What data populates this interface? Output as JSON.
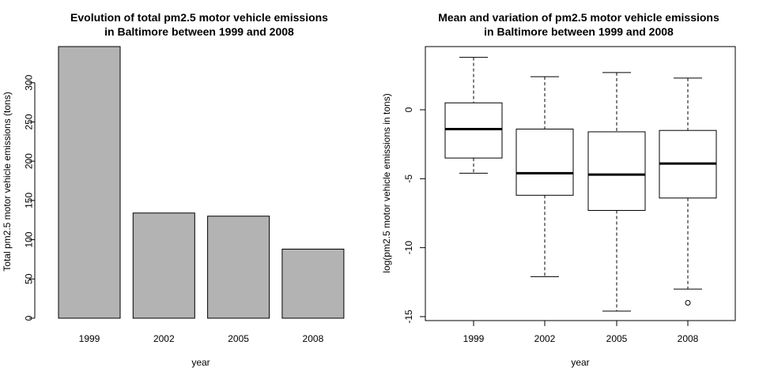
{
  "chart_data": [
    {
      "type": "bar",
      "title": "Evolution of total pm2.5 motor vehicle emissions\nin Baltimore between 1999 and 2008",
      "xlabel": "year",
      "ylabel": "Total pm2.5 motor vehicle emissions (tons)",
      "categories": [
        "1999",
        "2002",
        "2005",
        "2008"
      ],
      "values": [
        346,
        134,
        130,
        88
      ],
      "yticks": [
        0,
        50,
        100,
        150,
        200,
        250,
        300
      ],
      "ylim": [
        0,
        346
      ],
      "bar_color": "#b3b3b3"
    },
    {
      "type": "box",
      "title": "Mean and variation of pm2.5 motor vehicle emissions\nin Baltimore between 1999 and 2008",
      "xlabel": "year",
      "ylabel": "log(pm2.5 motor vehicle emissions in tons)",
      "categories": [
        "1999",
        "2002",
        "2005",
        "2008"
      ],
      "boxes": [
        {
          "whisker_low": -4.6,
          "q1": -3.5,
          "median": -1.4,
          "q3": 0.5,
          "whisker_high": 3.8,
          "outliers": []
        },
        {
          "whisker_low": -12.1,
          "q1": -6.2,
          "median": -4.6,
          "q3": -1.4,
          "whisker_high": 2.4,
          "outliers": []
        },
        {
          "whisker_low": -14.6,
          "q1": -7.3,
          "median": -4.7,
          "q3": -1.6,
          "whisker_high": 2.7,
          "outliers": []
        },
        {
          "whisker_low": -13.0,
          "q1": -6.4,
          "median": -3.9,
          "q3": -1.5,
          "whisker_high": 2.3,
          "outliers": [
            -14.0
          ]
        }
      ],
      "yticks": [
        -15,
        -10,
        -5,
        0
      ],
      "ylim": [
        -15,
        4.5
      ]
    }
  ]
}
